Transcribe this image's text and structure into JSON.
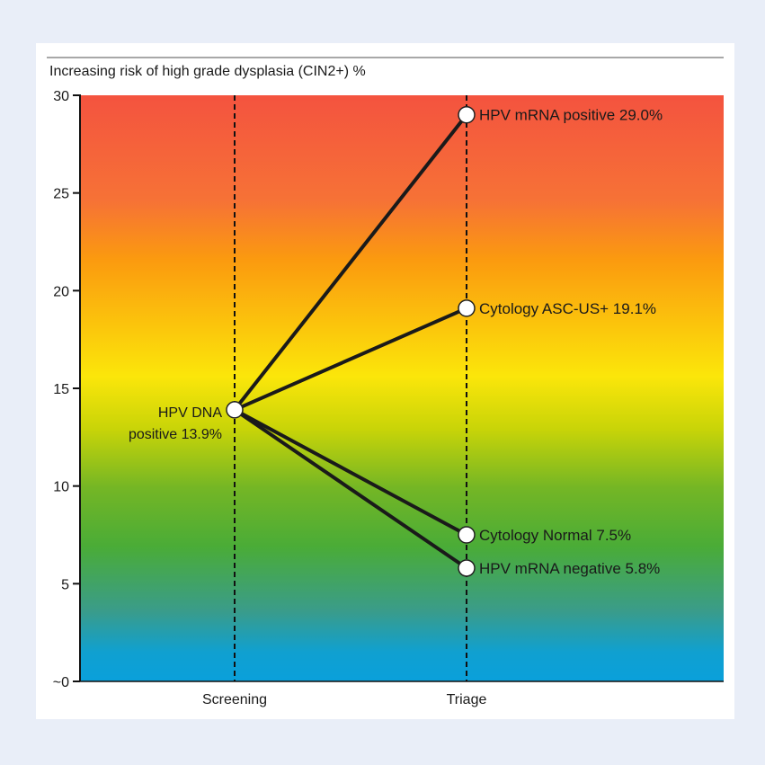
{
  "chart_data": {
    "type": "line",
    "title": "Increasing risk of high grade dysplasia (CIN2+) %",
    "xlabel": "",
    "ylabel": "",
    "categories": [
      "Screening",
      "Triage"
    ],
    "ylim": [
      0,
      30
    ],
    "yticks": [
      0,
      5,
      10,
      15,
      20,
      25,
      30
    ],
    "ytick_labels": [
      "~0",
      "5",
      "10",
      "15",
      "20",
      "25",
      "30"
    ],
    "background_gradient": [
      "#f25a3c",
      "#fbe21a",
      "#4bae3a",
      "#0aa0d8"
    ],
    "origin": {
      "category": "Screening",
      "value": 13.9,
      "label_lines": [
        "HPV DNA",
        "positive 13.9%"
      ]
    },
    "series": [
      {
        "category": "Triage",
        "value": 29.0,
        "label": "HPV mRNA positive 29.0%"
      },
      {
        "category": "Triage",
        "value": 19.1,
        "label": "Cytology ASC-US+ 19.1%"
      },
      {
        "category": "Triage",
        "value": 7.5,
        "label": "Cytology Normal 7.5%"
      },
      {
        "category": "Triage",
        "value": 5.8,
        "label": "HPV mRNA negative 5.8%"
      }
    ]
  }
}
